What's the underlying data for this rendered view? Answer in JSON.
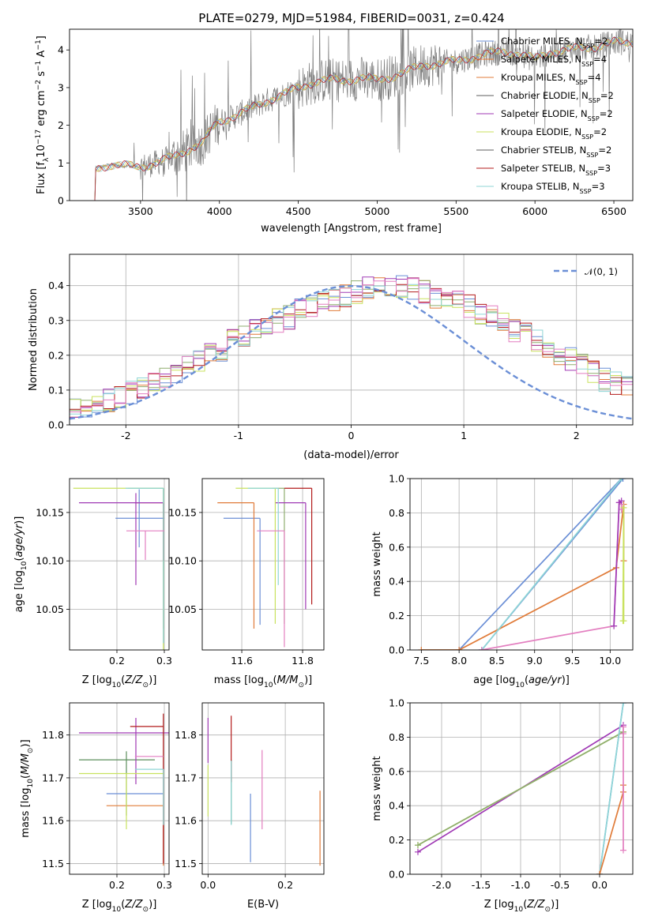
{
  "figure_title": "PLATE=0279, MJD=51984, FIBERID=0031, z=0.424",
  "model_colors": [
    "#6b8fd6",
    "#e07b39",
    "#8fae6f",
    "#5c5c5c",
    "#a03ab5",
    "#c9e25f",
    "#777777",
    "#b31b1b",
    "#8fd6d6"
  ],
  "chart_data": [
    {
      "id": "spectrum",
      "type": "line",
      "title": "PLATE=0279, MJD=51984, FIBERID=0031, z=0.424",
      "xlabel": "wavelength [Angstrom, rest frame]",
      "ylabel": "Flux [f",
      "ylabel_full": "Flux [fλ10⁻¹⁷ erg cm⁻² s⁻¹ A⁻¹]",
      "xlim": [
        3050,
        6620
      ],
      "ylim": [
        0,
        4.55
      ],
      "xticks": [
        3500,
        4000,
        4500,
        5000,
        5500,
        6000,
        6500
      ],
      "yticks": [
        0,
        1,
        2,
        3,
        4
      ],
      "grid": false,
      "legend_position": "top-right",
      "legend": [
        {
          "label": "Chabrier MILES, N",
          "sub": "SSP",
          "suffix": "=2",
          "color": "#6b8fd6"
        },
        {
          "label": "Salpeter MILES, N",
          "sub": "SSP",
          "suffix": "=4",
          "color": "#e07b39"
        },
        {
          "label": "Kroupa MILES, N",
          "sub": "SSP",
          "suffix": "=4",
          "color": "#e07b39"
        },
        {
          "label": "Chabrier ELODIE, N",
          "sub": "SSP",
          "suffix": "=2",
          "color": "#5c5c5c"
        },
        {
          "label": "Salpeter ELODIE, N",
          "sub": "SSP",
          "suffix": "=2",
          "color": "#a03ab5"
        },
        {
          "label": "Kroupa ELODIE, N",
          "sub": "SSP",
          "suffix": "=2",
          "color": "#c9e25f"
        },
        {
          "label": "Chabrier STELIB, N",
          "sub": "SSP",
          "suffix": "=2",
          "color": "#5c5c5c"
        },
        {
          "label": "Salpeter STELIB, N",
          "sub": "SSP",
          "suffix": "=3",
          "color": "#b31b1b"
        },
        {
          "label": "Kroupa STELIB, N",
          "sub": "SSP",
          "suffix": "=3",
          "color": "#8fd6d6"
        }
      ],
      "continuum_knots": [
        [
          3210,
          0
        ],
        [
          3215,
          0.85
        ],
        [
          3300,
          0.95
        ],
        [
          3400,
          0.92
        ],
        [
          3500,
          0.9
        ],
        [
          3600,
          1.0
        ],
        [
          3700,
          1.15
        ],
        [
          3800,
          1.35
        ],
        [
          3900,
          1.55
        ],
        [
          3950,
          1.9
        ],
        [
          4000,
          2.1
        ],
        [
          4100,
          2.25
        ],
        [
          4200,
          2.45
        ],
        [
          4300,
          2.65
        ],
        [
          4400,
          2.8
        ],
        [
          4500,
          3.0
        ],
        [
          4600,
          3.15
        ],
        [
          4700,
          3.2
        ],
        [
          4800,
          3.2
        ],
        [
          4900,
          3.25
        ],
        [
          5000,
          3.2
        ],
        [
          5100,
          3.3
        ],
        [
          5200,
          3.45
        ],
        [
          5300,
          3.6
        ],
        [
          5400,
          3.65
        ],
        [
          5500,
          3.7
        ],
        [
          5600,
          3.8
        ],
        [
          5700,
          3.9
        ],
        [
          5800,
          3.95
        ],
        [
          5900,
          3.9
        ],
        [
          6000,
          3.75
        ],
        [
          6100,
          3.95
        ],
        [
          6200,
          4.0
        ],
        [
          6300,
          4.05
        ],
        [
          6400,
          4.1
        ],
        [
          6500,
          4.2
        ],
        [
          6620,
          4.2
        ]
      ]
    },
    {
      "id": "residuals",
      "type": "step",
      "xlabel": "(data-model)/error",
      "ylabel": "Normed distribution",
      "xlim": [
        -2.5,
        2.5
      ],
      "ylim": [
        0,
        0.49
      ],
      "xticks": [
        -2,
        -1,
        0,
        1,
        2
      ],
      "yticks": [
        0.0,
        0.1,
        0.2,
        0.3,
        0.4
      ],
      "grid": true,
      "legend_position": "top-right",
      "legend": [
        {
          "label": "𝒩(0, 1)",
          "style": "dashed",
          "color": "#6b8fd6"
        }
      ],
      "bin_width": 0.1,
      "base_heights": [
        0.02,
        0.025,
        0.03,
        0.035,
        0.04,
        0.05,
        0.06,
        0.07,
        0.08,
        0.095,
        0.11,
        0.125,
        0.14,
        0.15,
        0.165,
        0.18,
        0.2,
        0.215,
        0.24,
        0.255,
        0.27,
        0.28,
        0.3,
        0.31,
        0.33,
        0.34,
        0.35,
        0.36,
        0.37,
        0.38,
        0.39,
        0.395,
        0.4,
        0.395,
        0.39,
        0.38,
        0.37,
        0.36,
        0.35,
        0.34,
        0.32,
        0.31,
        0.29,
        0.27,
        0.26,
        0.24,
        0.22,
        0.2,
        0.19,
        0.17,
        0.15,
        0.13,
        0.12,
        0.11,
        0.09,
        0.08,
        0.07,
        0.06,
        0.05,
        0.04,
        0.035,
        0.03,
        0.025,
        0.022,
        0.02,
        0.018,
        0.016,
        0.014,
        0.012,
        0.01
      ]
    },
    {
      "id": "age_vs_Z",
      "type": "errorbar",
      "xlabel": "Z [log",
      "xlabel_full": "Z [log10(Z/Z⊙)]",
      "ylabel": "age  [log10(age/yr)]",
      "xlim": [
        0.1,
        0.31
      ],
      "ylim": [
        10.008,
        10.185
      ],
      "xticks": [
        0.2,
        0.3
      ],
      "yticks": [
        10.05,
        10.1,
        10.15
      ],
      "grid": true,
      "points": [
        {
          "x": 0.247,
          "y": 10.144,
          "xerr": [
            0.05,
            0.053
          ],
          "yerr": [
            0.03,
            0.03
          ],
          "color": "#6b8fd6"
        },
        {
          "x": 0.298,
          "y": 10.16,
          "xerr": [
            0.06,
            0.0
          ],
          "yerr": [
            0.13,
            0.0
          ],
          "color": "#e07b39"
        },
        {
          "x": 0.298,
          "y": 10.175,
          "xerr": [
            0.075,
            0.0
          ],
          "yerr": [
            0.085,
            0.0
          ],
          "color": "#8fae6f"
        },
        {
          "x": 0.24,
          "y": 10.16,
          "xerr": [
            0.12,
            0.058
          ],
          "yerr": [
            0.085,
            0.01
          ],
          "color": "#a03ab5"
        },
        {
          "x": 0.298,
          "y": 10.175,
          "xerr": [
            0.19,
            0.0
          ],
          "yerr": [
            0.2,
            0.0
          ],
          "color": "#c9e25f"
        },
        {
          "x": 0.298,
          "y": 10.16,
          "xerr": [
            0.0,
            0.0
          ],
          "yerr": [
            0.06,
            0.0
          ],
          "color": "#b31b1b"
        },
        {
          "x": 0.298,
          "y": 10.175,
          "xerr": [
            0.08,
            0.0
          ],
          "yerr": [
            0.16,
            0.0
          ],
          "color": "#8fd6d6"
        },
        {
          "x": 0.26,
          "y": 10.131,
          "xerr": [
            0.04,
            0.04
          ],
          "yerr": [
            0.03,
            0.0
          ],
          "color": "#e37fc0"
        }
      ]
    },
    {
      "id": "age_vs_mass",
      "type": "errorbar",
      "xlabel": "mass [log10(M/M⊙)]",
      "ylabel": "",
      "xlim": [
        11.47,
        11.87
      ],
      "ylim": [
        10.008,
        10.185
      ],
      "xticks": [
        11.6,
        11.8
      ],
      "yticks": [
        10.05,
        10.1,
        10.15
      ],
      "grid": true,
      "points": [
        {
          "x": 11.66,
          "y": 10.144,
          "xerr": [
            0.12,
            0.0
          ],
          "yerr": [
            0.11,
            0.0
          ],
          "color": "#6b8fd6"
        },
        {
          "x": 11.64,
          "y": 10.16,
          "xerr": [
            0.12,
            0.0
          ],
          "yerr": [
            0.13,
            0.0
          ],
          "color": "#e07b39"
        },
        {
          "x": 11.74,
          "y": 10.175,
          "xerr": [
            0.04,
            0.0
          ],
          "yerr": [
            0.14,
            0.0
          ],
          "color": "#8fae6f"
        },
        {
          "x": 11.81,
          "y": 10.16,
          "xerr": [
            0.1,
            0.0
          ],
          "yerr": [
            0.11,
            0.0
          ],
          "color": "#a03ab5"
        },
        {
          "x": 11.71,
          "y": 10.175,
          "xerr": [
            0.13,
            0.0
          ],
          "yerr": [
            0.14,
            0.0
          ],
          "color": "#c9e25f"
        },
        {
          "x": 11.83,
          "y": 10.175,
          "xerr": [
            0.09,
            0.0
          ],
          "yerr": [
            0.12,
            0.0
          ],
          "color": "#b31b1b"
        },
        {
          "x": 11.72,
          "y": 10.175,
          "xerr": [
            0.1,
            0.0
          ],
          "yerr": [
            0.1,
            0.0
          ],
          "color": "#8fd6d6"
        },
        {
          "x": 11.74,
          "y": 10.131,
          "xerr": [
            0.09,
            0.0
          ],
          "yerr": [
            0.12,
            0.0
          ],
          "color": "#e37fc0"
        }
      ]
    },
    {
      "id": "massweight_vs_age",
      "type": "line",
      "xlabel": "age  [log10(age/yr)]",
      "ylabel": "mass weight",
      "xlim": [
        7.35,
        10.3
      ],
      "ylim": [
        0,
        1.0
      ],
      "xticks": [
        7.5,
        8.0,
        8.5,
        9.0,
        9.5,
        10.0
      ],
      "yticks": [
        0.0,
        0.2,
        0.4,
        0.6,
        0.8,
        1.0
      ],
      "grid": true,
      "series": [
        {
          "color": "#6b8fd6",
          "x": [
            8.0,
            10.15,
            10.17,
            8.3
          ],
          "y": [
            0.0,
            1.0,
            1.0,
            0.0
          ]
        },
        {
          "color": "#e07b39",
          "x": [
            7.5,
            8.0,
            10.08,
            10.18,
            10.18
          ],
          "y": [
            0.0,
            0.0,
            0.48,
            0.85,
            0.52
          ]
        },
        {
          "color": "#8fd6d6",
          "x": [
            8.3,
            10.15
          ],
          "y": [
            0.0,
            1.0
          ]
        },
        {
          "color": "#e37fc0",
          "x": [
            8.3,
            10.05,
            10.12,
            10.15,
            10.15
          ],
          "y": [
            0.0,
            0.14,
            0.86,
            0.85,
            0.82
          ]
        },
        {
          "color": "#a03ab5",
          "x": [
            10.05,
            10.12,
            10.15
          ],
          "y": [
            0.14,
            0.86,
            0.87
          ]
        },
        {
          "color": "#c9e25f",
          "x": [
            10.17,
            10.18,
            10.18
          ],
          "y": [
            0.17,
            0.83,
            0.17
          ]
        }
      ]
    },
    {
      "id": "mass_vs_Z",
      "type": "errorbar",
      "xlabel": "Z [log10(Z/Z⊙)]",
      "ylabel": "mass [log10(M/M⊙)]",
      "xlim": [
        0.1,
        0.31
      ],
      "ylim": [
        11.475,
        11.875
      ],
      "xticks": [
        0.2,
        0.3
      ],
      "yticks": [
        11.5,
        11.6,
        11.7,
        11.8
      ],
      "grid": true,
      "points": [
        {
          "x": 0.298,
          "y": 11.663,
          "xerr": [
            0.12,
            0.0
          ],
          "yerr": [
            0.0,
            0.0
          ],
          "color": "#6b8fd6"
        },
        {
          "x": 0.298,
          "y": 11.635,
          "xerr": [
            0.12,
            0.0
          ],
          "yerr": [
            0.14,
            0.0
          ],
          "color": "#e07b39"
        },
        {
          "x": 0.22,
          "y": 11.742,
          "xerr": [
            0.1,
            0.06
          ],
          "yerr": [
            0.13,
            0.02
          ],
          "color": "#5c8f5c"
        },
        {
          "x": 0.24,
          "y": 11.805,
          "xerr": [
            0.12,
            0.07
          ],
          "yerr": [
            0.12,
            0.035
          ],
          "color": "#a03ab5"
        },
        {
          "x": 0.22,
          "y": 11.71,
          "xerr": [
            0.1,
            0.08
          ],
          "yerr": [
            0.13,
            0.0
          ],
          "color": "#c9e25f"
        },
        {
          "x": 0.298,
          "y": 11.82,
          "xerr": [
            0.07,
            0.0
          ],
          "yerr": [
            0.32,
            0.03
          ],
          "color": "#b31b1b"
        },
        {
          "x": 0.298,
          "y": 11.72,
          "xerr": [
            0.06,
            0.0
          ],
          "yerr": [
            0.13,
            0.0
          ],
          "color": "#8fd6d6"
        },
        {
          "x": 0.298,
          "y": 11.75,
          "xerr": [
            0.06,
            0.0
          ],
          "yerr": [
            0.0,
            0.0
          ],
          "color": "#e37fc0"
        }
      ]
    },
    {
      "id": "mass_vs_ebv",
      "type": "errorbar",
      "xlabel": "E(B-V)",
      "ylabel": "",
      "xlim": [
        -0.015,
        0.3
      ],
      "ylim": [
        11.475,
        11.875
      ],
      "xticks": [
        0.0,
        0.2
      ],
      "yticks": [
        11.5,
        11.6,
        11.7,
        11.8
      ],
      "grid": true,
      "points": [
        {
          "x": 0.11,
          "y": 11.663,
          "xerr": [
            0.0,
            0.0
          ],
          "yerr": [
            0.16,
            0.0
          ],
          "color": "#6b8fd6"
        },
        {
          "x": 0.29,
          "y": 11.635,
          "xerr": [
            0.0,
            0.0
          ],
          "yerr": [
            0.14,
            0.035
          ],
          "color": "#e07b39"
        },
        {
          "x": 0.06,
          "y": 11.742,
          "xerr": [
            0.0,
            0.0
          ],
          "yerr": [
            0.15,
            0.0
          ],
          "color": "#5c8f5c"
        },
        {
          "x": 0.0,
          "y": 11.805,
          "xerr": [
            0.0,
            0.0
          ],
          "yerr": [
            0.07,
            0.035
          ],
          "color": "#a03ab5"
        },
        {
          "x": 0.0,
          "y": 11.71,
          "xerr": [
            0.0,
            0.0
          ],
          "yerr": [
            0.1,
            0.02
          ],
          "color": "#c9e25f"
        },
        {
          "x": 0.06,
          "y": 11.82,
          "xerr": [
            0.0,
            0.0
          ],
          "yerr": [
            0.13,
            0.025
          ],
          "color": "#b31b1b"
        },
        {
          "x": 0.06,
          "y": 11.72,
          "xerr": [
            0.0,
            0.0
          ],
          "yerr": [
            0.13,
            0.02
          ],
          "color": "#8fd6d6"
        },
        {
          "x": 0.14,
          "y": 11.7,
          "xerr": [
            0.0,
            0.0
          ],
          "yerr": [
            0.12,
            0.065
          ],
          "color": "#e37fc0"
        }
      ]
    },
    {
      "id": "massweight_vs_Z",
      "type": "line",
      "xlabel": "Z [log10(Z/Z⊙)]",
      "ylabel": "mass weight",
      "xlim": [
        -2.4,
        0.42
      ],
      "ylim": [
        0,
        1.0
      ],
      "xticks": [
        -2.0,
        -1.5,
        -1.0,
        -0.5,
        0.0
      ],
      "yticks": [
        0.0,
        0.2,
        0.4,
        0.6,
        0.8,
        1.0
      ],
      "grid": true,
      "series": [
        {
          "color": "#a03ab5",
          "x": [
            -2.3,
            0.3
          ],
          "y": [
            0.13,
            0.87
          ]
        },
        {
          "color": "#c9e25f",
          "x": [
            -2.3,
            0.3
          ],
          "y": [
            0.17,
            0.83
          ]
        },
        {
          "color": "#8fae6f",
          "x": [
            -2.3,
            0.3
          ],
          "y": [
            0.17,
            0.83
          ]
        },
        {
          "color": "#6b8fd6",
          "x": [
            0.0,
            0.3
          ],
          "y": [
            0.0,
            1.0
          ]
        },
        {
          "color": "#8fd6d6",
          "x": [
            0.0,
            0.3
          ],
          "y": [
            0.0,
            1.0
          ]
        },
        {
          "color": "#e07b39",
          "x": [
            0.0,
            0.3,
            0.3
          ],
          "y": [
            0.0,
            0.48,
            0.52
          ]
        },
        {
          "color": "#e37fc0",
          "x": [
            0.3,
            0.3,
            0.3
          ],
          "y": [
            0.14,
            0.86,
            0.82
          ]
        }
      ]
    }
  ]
}
